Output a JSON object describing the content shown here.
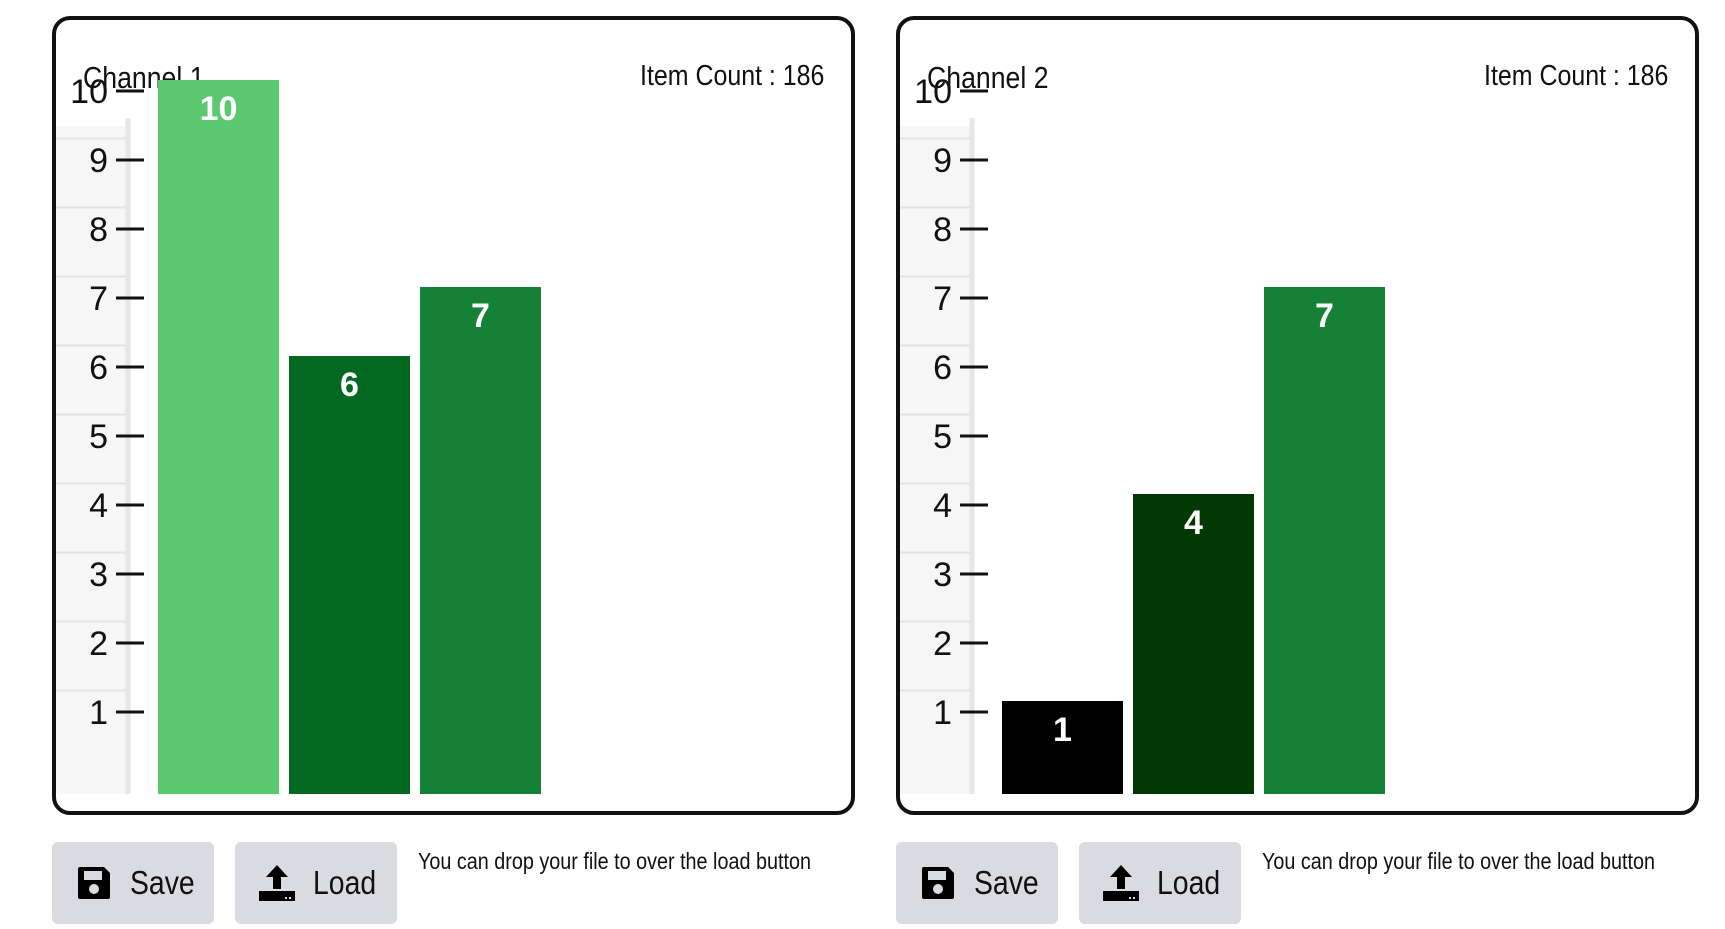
{
  "panels": [
    {
      "title": "Channel 1",
      "item_count": "Item Count : 186",
      "save_label": "Save",
      "load_label": "Load",
      "drop_hint": "You can drop your file to over the load button"
    },
    {
      "title": "Channel 2",
      "item_count": "Item Count : 186",
      "save_label": "Save",
      "load_label": "Load",
      "drop_hint": "You can drop your file to over the load button"
    }
  ],
  "icons": {
    "save": "floppy-disk-icon",
    "load": "upload-icon"
  },
  "chart_data": [
    {
      "type": "bar",
      "title": "Channel 1",
      "values": [
        10,
        6,
        7
      ],
      "colors": [
        "#5cc870",
        "#046920",
        "#148136"
      ],
      "yticks": [
        1,
        2,
        3,
        4,
        5,
        6,
        7,
        8,
        9,
        10
      ],
      "ylim": [
        0,
        10
      ]
    },
    {
      "type": "bar",
      "title": "Channel 2",
      "values": [
        1,
        4,
        7
      ],
      "colors": [
        "#000000",
        "#023804",
        "#148136"
      ],
      "yticks": [
        1,
        2,
        3,
        4,
        5,
        6,
        7,
        8,
        9,
        10
      ],
      "ylim": [
        0,
        10
      ]
    }
  ]
}
